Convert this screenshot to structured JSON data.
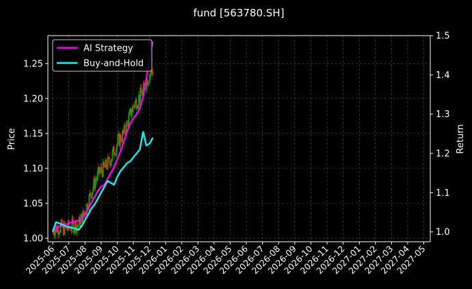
{
  "chart_data": {
    "type": "line",
    "title": "fund [563780.SH]",
    "ylabel": "Price",
    "ylabel_right": "Return",
    "ylim": [
      0.995,
      1.29
    ],
    "ylim_right": [
      0.975,
      1.5
    ],
    "yticks": [
      "1.00",
      "1.05",
      "1.10",
      "1.15",
      "1.20",
      "1.25"
    ],
    "yticks_right": [
      "1.0",
      "1.1",
      "1.2",
      "1.3",
      "1.4",
      "1.5"
    ],
    "x_tick_labels": [
      "2025-06",
      "2025-07",
      "2025-08",
      "2025-09",
      "2025-10",
      "2025-11",
      "2025-12",
      "2026-01",
      "2026-02",
      "2026-03",
      "2026-04",
      "2026-05",
      "2026-06",
      "2026-07",
      "2026-08",
      "2026-09",
      "2026-10",
      "2026-11",
      "2026-12",
      "2027-01",
      "2027-02",
      "2027-03",
      "2027-04",
      "2027-05"
    ],
    "xlim_months": [
      -0.3,
      23.4
    ],
    "grid": true,
    "legend_position": "top-left",
    "candlesticks": {
      "up_color": "#00b000",
      "down_color": "#ff2020",
      "start_month": 0,
      "end_month": 6.2,
      "close_path": [
        [
          0,
          1.012
        ],
        [
          0.4,
          1.016
        ],
        [
          0.8,
          1.013
        ],
        [
          1.2,
          1.018
        ],
        [
          1.6,
          1.02
        ],
        [
          2.0,
          1.038
        ],
        [
          2.3,
          1.06
        ],
        [
          2.6,
          1.08
        ],
        [
          2.9,
          1.095
        ],
        [
          3.2,
          1.1
        ],
        [
          3.5,
          1.11
        ],
        [
          3.8,
          1.125
        ],
        [
          4.1,
          1.14
        ],
        [
          4.4,
          1.15
        ],
        [
          4.7,
          1.17
        ],
        [
          5.0,
          1.19
        ],
        [
          5.3,
          1.2
        ],
        [
          5.6,
          1.21
        ],
        [
          5.8,
          1.225
        ],
        [
          6.0,
          1.235
        ],
        [
          6.2,
          1.24
        ]
      ]
    },
    "series": [
      {
        "name": "AI Strategy",
        "color": "#ff00ff",
        "axis": "right",
        "points": [
          [
            0,
            1.0
          ],
          [
            0.3,
            1.012
          ],
          [
            0.6,
            1.018
          ],
          [
            0.9,
            1.02
          ],
          [
            1.2,
            1.025
          ],
          [
            1.5,
            1.028
          ],
          [
            1.8,
            1.032
          ],
          [
            2.0,
            1.045
          ],
          [
            2.2,
            1.06
          ],
          [
            2.4,
            1.075
          ],
          [
            2.6,
            1.09
          ],
          [
            2.8,
            1.105
          ],
          [
            3.0,
            1.115
          ],
          [
            3.2,
            1.12
          ],
          [
            3.4,
            1.135
          ],
          [
            3.6,
            1.15
          ],
          [
            3.8,
            1.165
          ],
          [
            4.0,
            1.185
          ],
          [
            4.2,
            1.205
          ],
          [
            4.4,
            1.23
          ],
          [
            4.6,
            1.255
          ],
          [
            4.8,
            1.275
          ],
          [
            5.0,
            1.29
          ],
          [
            5.2,
            1.3
          ],
          [
            5.4,
            1.315
          ],
          [
            5.6,
            1.345
          ],
          [
            5.8,
            1.39
          ],
          [
            6.0,
            1.445
          ],
          [
            6.2,
            1.485
          ]
        ]
      },
      {
        "name": "Buy-and-Hold",
        "color": "#00ffff",
        "axis": "right",
        "points": [
          [
            0,
            1.0
          ],
          [
            0.2,
            1.025
          ],
          [
            0.5,
            1.02
          ],
          [
            0.8,
            1.015
          ],
          [
            1.0,
            1.012
          ],
          [
            1.3,
            1.01
          ],
          [
            1.6,
            1.005
          ],
          [
            1.8,
            1.015
          ],
          [
            2.0,
            1.03
          ],
          [
            2.2,
            1.045
          ],
          [
            2.4,
            1.06
          ],
          [
            2.6,
            1.07
          ],
          [
            2.8,
            1.085
          ],
          [
            3.0,
            1.1
          ],
          [
            3.2,
            1.115
          ],
          [
            3.4,
            1.13
          ],
          [
            3.6,
            1.125
          ],
          [
            3.8,
            1.12
          ],
          [
            4.0,
            1.14
          ],
          [
            4.2,
            1.155
          ],
          [
            4.4,
            1.165
          ],
          [
            4.6,
            1.175
          ],
          [
            4.8,
            1.18
          ],
          [
            5.0,
            1.19
          ],
          [
            5.2,
            1.2
          ],
          [
            5.4,
            1.21
          ],
          [
            5.6,
            1.255
          ],
          [
            5.8,
            1.22
          ],
          [
            6.0,
            1.225
          ],
          [
            6.2,
            1.24
          ]
        ]
      }
    ]
  }
}
